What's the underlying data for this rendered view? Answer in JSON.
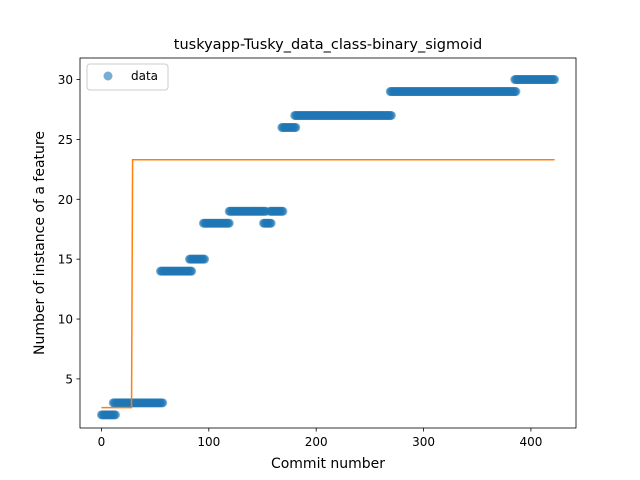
{
  "chart_data": {
    "type": "scatter",
    "title": "tuskyapp-Tusky_data_class-binary_sigmoid",
    "xlabel": "Commit number",
    "ylabel": "Number of instance of a feature",
    "xlim": [
      -20,
      442
    ],
    "ylim": [
      0.9,
      31.8
    ],
    "xticks": [
      0,
      100,
      200,
      300,
      400
    ],
    "yticks": [
      5,
      10,
      15,
      20,
      25,
      30
    ],
    "grid": false,
    "legend": {
      "position": "top-left",
      "entries": [
        "data"
      ]
    },
    "colors": {
      "data": "#1f77b4",
      "fit": "#ff7f0e"
    },
    "series": [
      {
        "name": "data",
        "kind": "points",
        "segments": [
          {
            "x_start": 0,
            "x_end": 13,
            "y": 2
          },
          {
            "x_start": 11,
            "x_end": 57,
            "y": 3
          },
          {
            "x_start": 55,
            "x_end": 84,
            "y": 14
          },
          {
            "x_start": 82,
            "x_end": 96,
            "y": 15
          },
          {
            "x_start": 95,
            "x_end": 119,
            "y": 18
          },
          {
            "x_start": 119,
            "x_end": 153,
            "y": 19
          },
          {
            "x_start": 151,
            "x_end": 158,
            "y": 18
          },
          {
            "x_start": 157,
            "x_end": 169,
            "y": 19
          },
          {
            "x_start": 168,
            "x_end": 181,
            "y": 26
          },
          {
            "x_start": 180,
            "x_end": 270,
            "y": 27
          },
          {
            "x_start": 269,
            "x_end": 386,
            "y": 29
          },
          {
            "x_start": 385,
            "x_end": 422,
            "y": 30
          }
        ]
      },
      {
        "kind": "line",
        "x": [
          0,
          28,
          29,
          422
        ],
        "y": [
          2.6,
          2.6,
          23.3,
          23.3
        ]
      }
    ]
  }
}
